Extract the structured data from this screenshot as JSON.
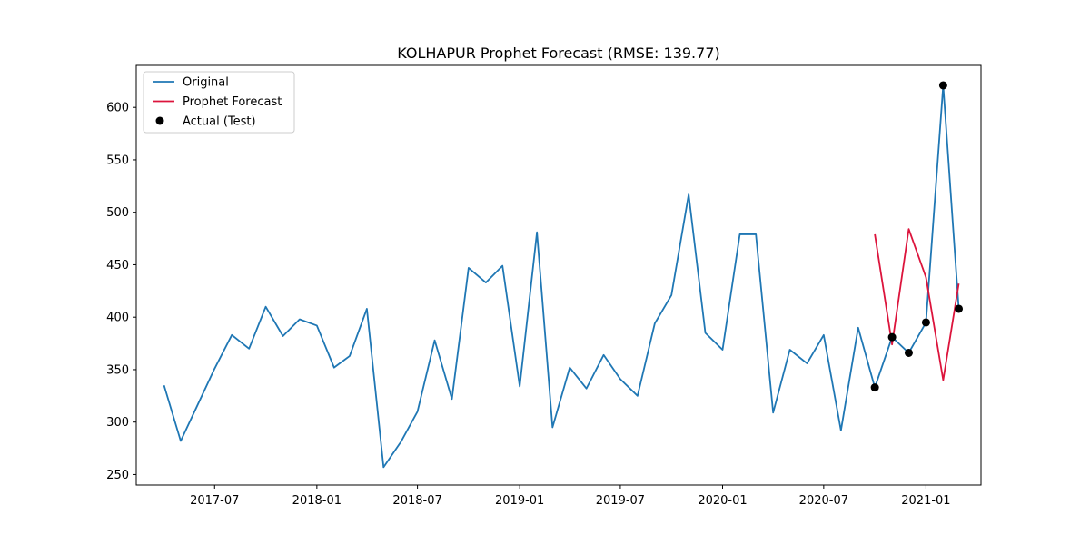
{
  "chart_data": {
    "type": "line",
    "title": "KOLHAPUR Prophet Forecast (RMSE: 139.77)",
    "xlabel": "",
    "ylabel": "",
    "x_range": [
      "2017-02-10",
      "2021-04-10"
    ],
    "ylim": [
      240,
      640
    ],
    "x_ticks": [
      "2017-07-01",
      "2018-01-01",
      "2018-07-01",
      "2019-01-01",
      "2019-07-01",
      "2020-01-01",
      "2020-07-01",
      "2021-01-01"
    ],
    "x_tick_labels": [
      "2017-07",
      "2018-01",
      "2018-07",
      "2019-01",
      "2019-07",
      "2020-01",
      "2020-07",
      "2021-01"
    ],
    "y_ticks": [
      250,
      300,
      350,
      400,
      450,
      500,
      550,
      600
    ],
    "y_tick_labels": [
      "250",
      "300",
      "350",
      "400",
      "450",
      "500",
      "550",
      "600"
    ],
    "grid": false,
    "legend_position": "top-left",
    "series": [
      {
        "name": "Original",
        "kind": "line",
        "color": "#1f77b4",
        "x": [
          "2017-04-01",
          "2017-05-01",
          "2017-06-01",
          "2017-07-01",
          "2017-08-01",
          "2017-09-01",
          "2017-10-01",
          "2017-11-01",
          "2017-12-01",
          "2018-01-01",
          "2018-02-01",
          "2018-03-01",
          "2018-04-01",
          "2018-05-01",
          "2018-06-01",
          "2018-07-01",
          "2018-08-01",
          "2018-09-01",
          "2018-10-01",
          "2018-11-01",
          "2018-12-01",
          "2019-01-01",
          "2019-02-01",
          "2019-03-01",
          "2019-04-01",
          "2019-05-01",
          "2019-06-01",
          "2019-07-01",
          "2019-08-01",
          "2019-09-01",
          "2019-10-01",
          "2019-11-01",
          "2019-12-01",
          "2020-01-01",
          "2020-02-01",
          "2020-03-01",
          "2020-04-01",
          "2020-05-01",
          "2020-06-01",
          "2020-07-01",
          "2020-08-01",
          "2020-09-01",
          "2020-10-01",
          "2020-11-01",
          "2020-12-01",
          "2021-01-01",
          "2021-02-01",
          "2021-03-01"
        ],
        "values": [
          335,
          282,
          317,
          351,
          383,
          370,
          410,
          382,
          398,
          392,
          352,
          363,
          408,
          257,
          281,
          310,
          378,
          322,
          447,
          433,
          449,
          334,
          481,
          295,
          352,
          332,
          364,
          341,
          325,
          394,
          421,
          517,
          385,
          369,
          479,
          479,
          309,
          369,
          356,
          383,
          292,
          390,
          333,
          381,
          366,
          395,
          621,
          408
        ]
      },
      {
        "name": "Prophet Forecast",
        "kind": "line",
        "color": "#dc143c",
        "x": [
          "2020-10-01",
          "2020-11-01",
          "2020-12-01",
          "2021-01-01",
          "2021-02-01",
          "2021-03-01"
        ],
        "values": [
          479,
          374,
          484,
          438,
          340,
          432
        ]
      },
      {
        "name": "Actual (Test)",
        "kind": "scatter",
        "color": "#000000",
        "x": [
          "2020-10-01",
          "2020-11-01",
          "2020-12-01",
          "2021-01-01",
          "2021-02-01",
          "2021-03-01"
        ],
        "values": [
          333,
          381,
          366,
          395,
          621,
          408
        ]
      }
    ]
  }
}
